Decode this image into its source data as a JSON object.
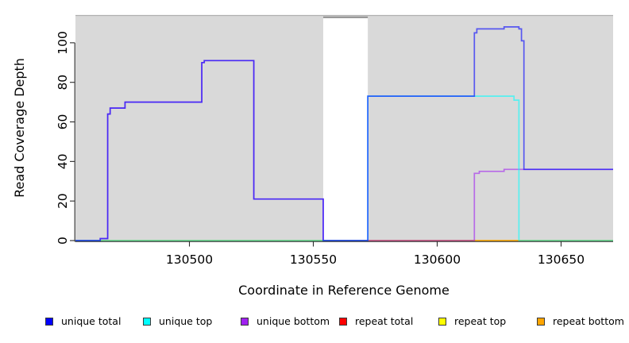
{
  "chart_data": {
    "type": "line",
    "subtype": "step-coverage",
    "title": "",
    "xlabel": "Coordinate in Reference Genome",
    "ylabel": "Read Coverage Depth",
    "xlim": [
      130454,
      130671
    ],
    "ylim": [
      0,
      114
    ],
    "xticks": [
      130500,
      130550,
      130600,
      130650
    ],
    "yticks": [
      0,
      20,
      40,
      60,
      80,
      100
    ],
    "grid": "off",
    "plot_background": "#d9d9d9",
    "plot_top_border_color": "#b0b0b0",
    "axis_line_color": "#2b2b2b",
    "line_opacity": 0.6,
    "gap_region": {
      "x0": 130554,
      "x1": 130572,
      "fill": "#ffffff",
      "cap_color": "#8a8a8a"
    },
    "series": [
      {
        "name": "repeat total",
        "color": "#ff0000",
        "points": [
          [
            130454,
            0
          ],
          [
            130671,
            0
          ]
        ]
      },
      {
        "name": "repeat top",
        "color": "#ffff00",
        "points": [
          [
            130454,
            0
          ],
          [
            130671,
            0
          ]
        ]
      },
      {
        "name": "repeat bottom",
        "color": "#ffa500",
        "points": [
          [
            130454,
            0
          ],
          [
            130671,
            0
          ]
        ]
      },
      {
        "name": "unique bottom",
        "color": "#a020f0",
        "points": [
          [
            130454,
            0
          ],
          [
            130464,
            0
          ],
          [
            130464,
            1
          ],
          [
            130467,
            1
          ],
          [
            130467,
            64
          ],
          [
            130468,
            64
          ],
          [
            130468,
            67
          ],
          [
            130474,
            67
          ],
          [
            130474,
            70
          ],
          [
            130505,
            70
          ],
          [
            130505,
            90
          ],
          [
            130506,
            90
          ],
          [
            130506,
            91
          ],
          [
            130526,
            91
          ],
          [
            130526,
            21
          ],
          [
            130554,
            21
          ],
          [
            130554,
            0
          ],
          [
            130615,
            0
          ],
          [
            130615,
            34
          ],
          [
            130617,
            34
          ],
          [
            130617,
            35
          ],
          [
            130627,
            35
          ],
          [
            130627,
            36
          ],
          [
            130671,
            36
          ]
        ]
      },
      {
        "name": "unique top",
        "color": "#00ffff",
        "points": [
          [
            130454,
            0
          ],
          [
            130572,
            0
          ],
          [
            130572,
            73
          ],
          [
            130631,
            73
          ],
          [
            130631,
            71
          ],
          [
            130633,
            71
          ],
          [
            130633,
            0
          ],
          [
            130671,
            0
          ]
        ]
      },
      {
        "name": "unique total",
        "color": "#0000ff",
        "points": [
          [
            130454,
            0
          ],
          [
            130464,
            0
          ],
          [
            130464,
            1
          ],
          [
            130467,
            1
          ],
          [
            130467,
            64
          ],
          [
            130468,
            64
          ],
          [
            130468,
            67
          ],
          [
            130474,
            67
          ],
          [
            130474,
            70
          ],
          [
            130505,
            70
          ],
          [
            130505,
            90
          ],
          [
            130506,
            90
          ],
          [
            130506,
            91
          ],
          [
            130526,
            91
          ],
          [
            130526,
            21
          ],
          [
            130554,
            21
          ],
          [
            130554,
            0
          ],
          [
            130572,
            0
          ],
          [
            130572,
            73
          ],
          [
            130615,
            73
          ],
          [
            130615,
            105
          ],
          [
            130616,
            105
          ],
          [
            130616,
            107
          ],
          [
            130627,
            107
          ],
          [
            130627,
            108
          ],
          [
            130633,
            108
          ],
          [
            130633,
            107
          ],
          [
            130634,
            107
          ],
          [
            130634,
            101
          ],
          [
            130635,
            101
          ],
          [
            130635,
            36
          ],
          [
            130671,
            36
          ]
        ]
      }
    ],
    "legend": [
      {
        "label": "unique total",
        "color": "#0000ff"
      },
      {
        "label": "unique top",
        "color": "#00ffff"
      },
      {
        "label": "unique bottom",
        "color": "#a020f0"
      },
      {
        "label": "repeat total",
        "color": "#ff0000"
      },
      {
        "label": "repeat top",
        "color": "#ffff00"
      },
      {
        "label": "repeat bottom",
        "color": "#ffa500"
      }
    ],
    "legend_position": "bottom"
  }
}
